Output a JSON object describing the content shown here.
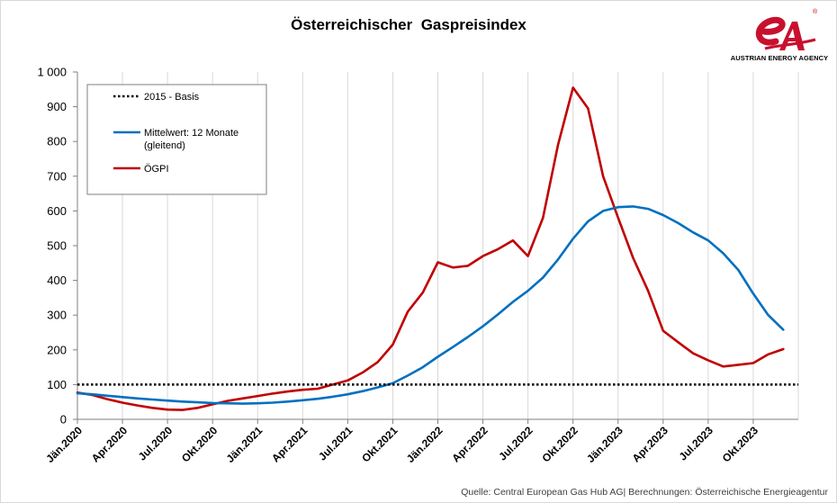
{
  "chart_data": {
    "type": "line",
    "title": "Österreichischer  Gaspreisindex",
    "xlabel": "",
    "ylabel": "",
    "ylim": [
      0,
      1000
    ],
    "yticks": [
      "0",
      "100",
      "200",
      "300",
      "400",
      "500",
      "600",
      "700",
      "800",
      "900",
      "1 000"
    ],
    "xticks": [
      "Jän.2020",
      "Apr.2020",
      "Jul.2020",
      "Okt.2020",
      "Jän.2021",
      "Apr.2021",
      "Jul.2021",
      "Okt.2021",
      "Jän.2022",
      "Apr.2022",
      "Jul.2022",
      "Okt.2022",
      "Jän.2023",
      "Apr.2023",
      "Jul.2023",
      "Okt.2023"
    ],
    "grid": "vertical",
    "legend_position": "top-left",
    "legend": [
      {
        "label": "2015 - Basis",
        "style": "dotted",
        "color": "#000000"
      },
      {
        "label_line1": "Mittelwert: 12 Monate",
        "label_line2": "(gleitend)",
        "style": "solid",
        "color": "#0070c0"
      },
      {
        "label": "ÖGPI",
        "style": "solid",
        "color": "#c00000"
      }
    ],
    "series": [
      {
        "name": "ÖGPI",
        "color": "#c00000",
        "values": [
          77,
          70,
          58,
          48,
          40,
          33,
          28,
          27,
          33,
          43,
          53,
          60,
          67,
          74,
          80,
          85,
          88,
          100,
          112,
          135,
          165,
          215,
          310,
          365,
          452,
          437,
          442,
          470,
          490,
          515,
          470,
          580,
          790,
          955,
          895,
          700,
          580,
          465,
          370,
          255,
          222,
          190,
          170,
          152,
          157,
          162,
          187,
          202
        ]
      },
      {
        "name": "Mittelwert: 12 Monate (gleitend)",
        "color": "#0070c0",
        "values": [
          75,
          72,
          68,
          64,
          60,
          57,
          54,
          51,
          49,
          47,
          46,
          45,
          46,
          48,
          51,
          55,
          59,
          65,
          72,
          81,
          92,
          104,
          126,
          150,
          180,
          208,
          237,
          268,
          302,
          338,
          370,
          408,
          460,
          520,
          570,
          600,
          611,
          613,
          606,
          588,
          565,
          538,
          515,
          478,
          430,
          362,
          300,
          258
        ]
      },
      {
        "name": "2015 - Basis",
        "color": "#000000",
        "constant": 100
      }
    ]
  },
  "logo": {
    "text": "AUSTRIAN ENERGY AGENCY",
    "reg_mark": "®",
    "brand_color": "#c8102e"
  },
  "source": "Quelle: Central European Gas Hub AG| Berechnungen: Österreichische Energieagentur"
}
